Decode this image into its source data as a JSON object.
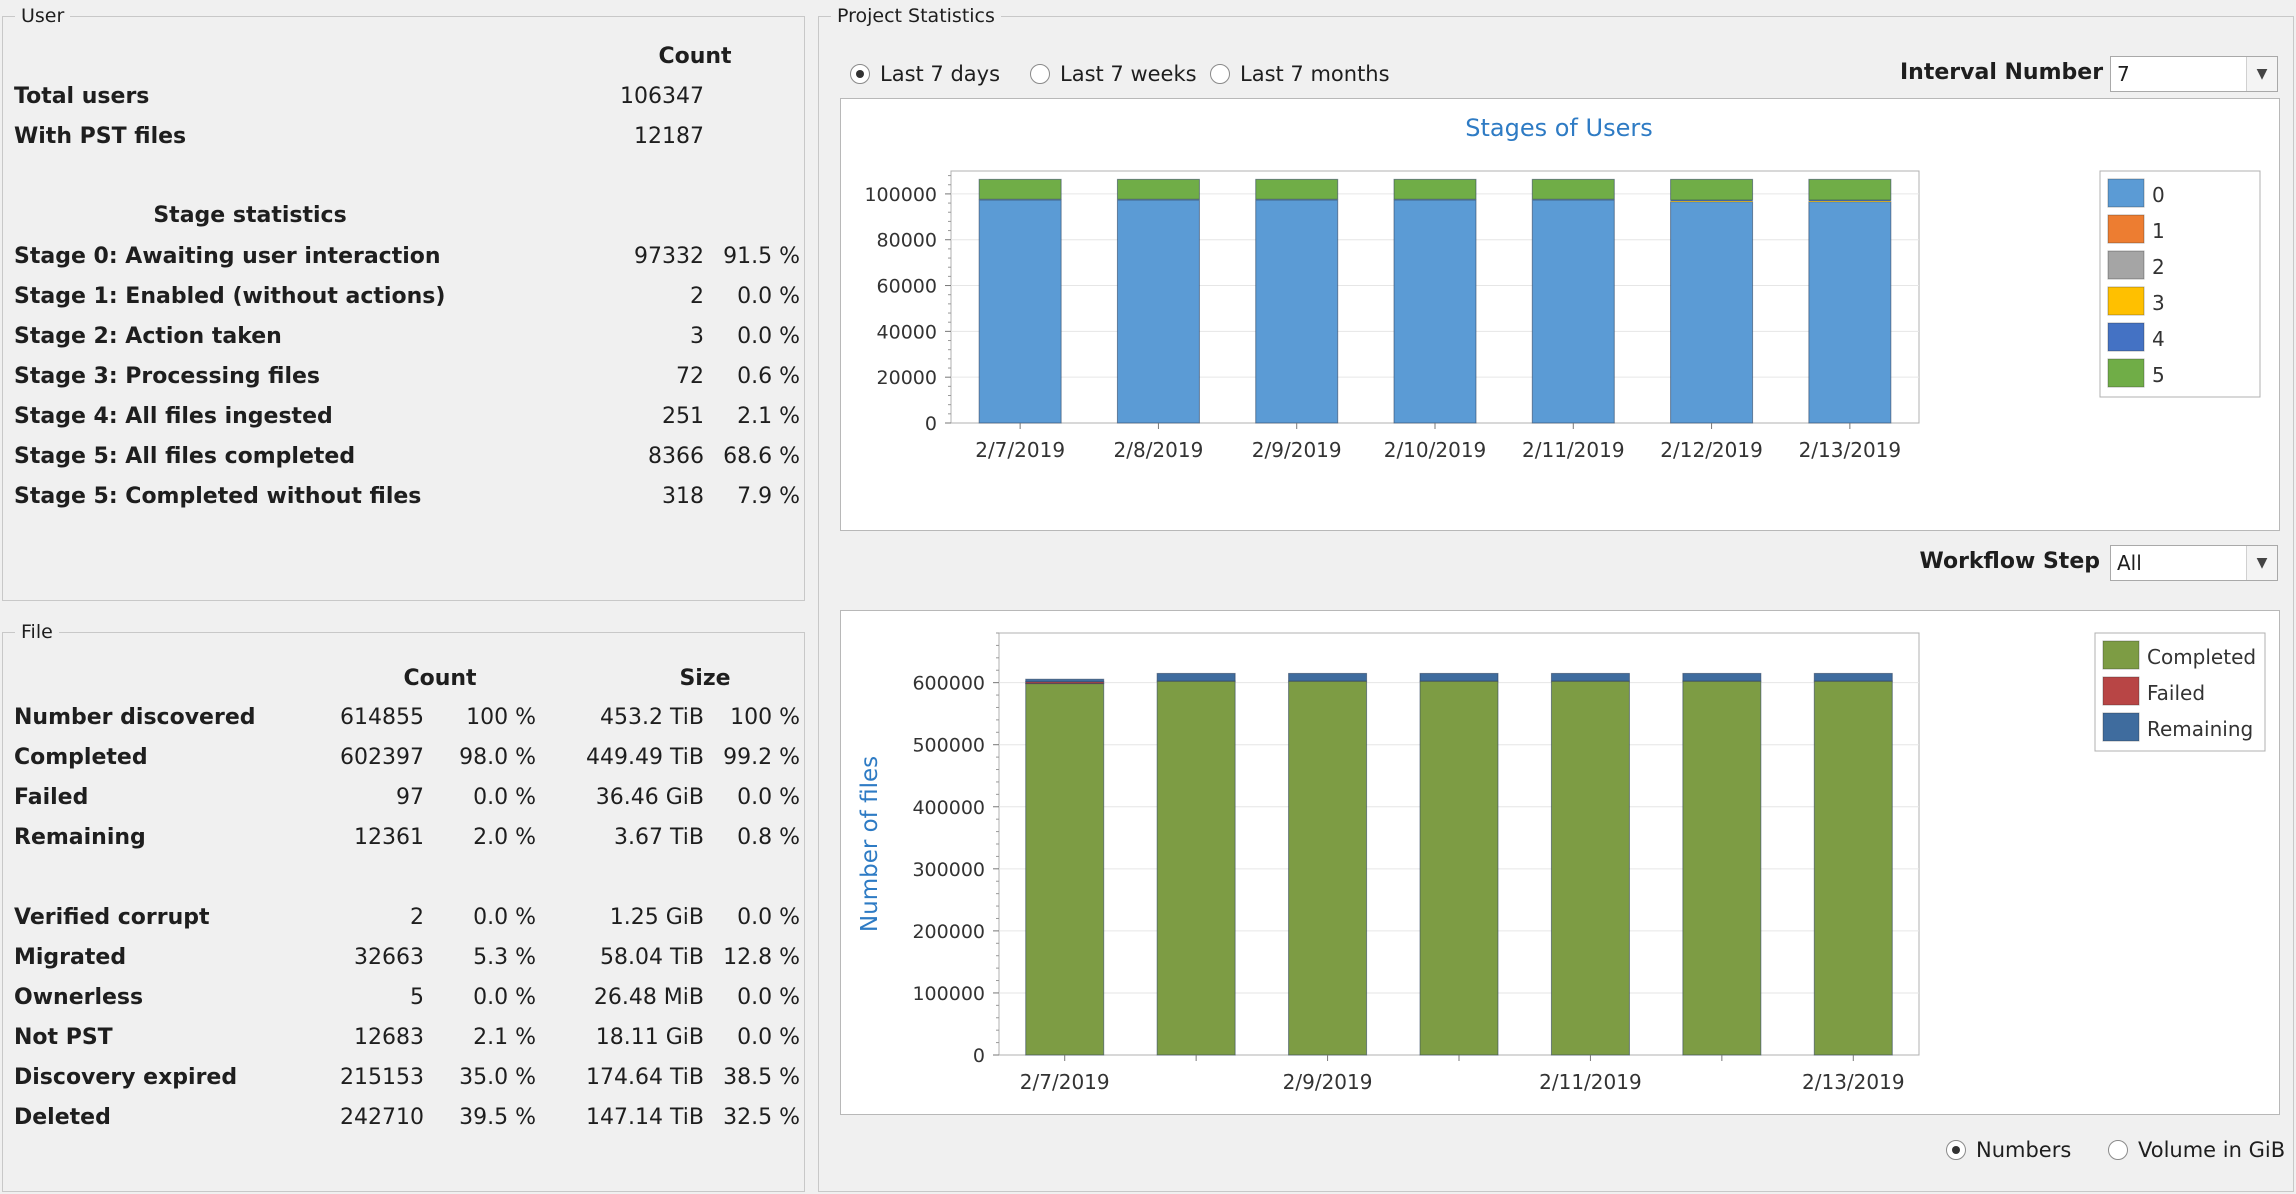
{
  "user_panel": {
    "title": "User",
    "count_header": "Count",
    "totals": [
      {
        "label": "Total users",
        "count": "106347"
      },
      {
        "label": "With PST files",
        "count": "12187"
      }
    ],
    "stage_header": "Stage statistics",
    "stages": [
      {
        "label": "Stage 0: Awaiting user interaction",
        "count": "97332",
        "pct": "91.5 %"
      },
      {
        "label": "Stage 1: Enabled (without actions)",
        "count": "2",
        "pct": "0.0 %"
      },
      {
        "label": "Stage 2: Action taken",
        "count": "3",
        "pct": "0.0 %"
      },
      {
        "label": "Stage 3: Processing files",
        "count": "72",
        "pct": "0.6 %"
      },
      {
        "label": "Stage 4: All files ingested",
        "count": "251",
        "pct": "2.1 %"
      },
      {
        "label": "Stage 5: All files completed",
        "count": "8366",
        "pct": "68.6 %"
      },
      {
        "label": "Stage 5: Completed without files",
        "count": "318",
        "pct": "7.9 %"
      }
    ]
  },
  "file_panel": {
    "title": "File",
    "count_header": "Count",
    "size_header": "Size",
    "rows": [
      {
        "label": "Number discovered",
        "count": "614855",
        "cpct": "100 %",
        "size": "453.2 TiB",
        "spct": "100 %"
      },
      {
        "label": "Completed",
        "count": "602397",
        "cpct": "98.0 %",
        "size": "449.49 TiB",
        "spct": "99.2 %"
      },
      {
        "label": "Failed",
        "count": "97",
        "cpct": "0.0 %",
        "size": "36.46 GiB",
        "spct": "0.0 %"
      },
      {
        "label": "Remaining",
        "count": "12361",
        "cpct": "2.0 %",
        "size": "3.67 TiB",
        "spct": "0.8 %"
      },
      {
        "label": "Verified corrupt",
        "count": "2",
        "cpct": "0.0 %",
        "size": "1.25 GiB",
        "spct": "0.0 %"
      },
      {
        "label": "Migrated",
        "count": "32663",
        "cpct": "5.3 %",
        "size": "58.04 TiB",
        "spct": "12.8 %"
      },
      {
        "label": "Ownerless",
        "count": "5",
        "cpct": "0.0 %",
        "size": "26.48 MiB",
        "spct": "0.0 %"
      },
      {
        "label": "Not PST",
        "count": "12683",
        "cpct": "2.1 %",
        "size": "18.11 GiB",
        "spct": "0.0 %"
      },
      {
        "label": "Discovery expired",
        "count": "215153",
        "cpct": "35.0 %",
        "size": "174.64 TiB",
        "spct": "38.5 %"
      },
      {
        "label": "Deleted",
        "count": "242710",
        "cpct": "39.5 %",
        "size": "147.14 TiB",
        "spct": "32.5 %"
      }
    ]
  },
  "project_panel": {
    "title": "Project Statistics",
    "range_options": [
      {
        "label": "Last 7 days",
        "selected": true
      },
      {
        "label": "Last 7 weeks",
        "selected": false
      },
      {
        "label": "Last 7 months",
        "selected": false
      }
    ],
    "interval_label": "Interval Number",
    "interval_value": "7",
    "workflow_label": "Workflow Step",
    "workflow_value": "All",
    "mode_options": [
      {
        "label": "Numbers",
        "selected": true
      },
      {
        "label": "Volume in GiB",
        "selected": false
      }
    ]
  },
  "chart_data": [
    {
      "type": "bar",
      "stacked": true,
      "title": "Stages of Users",
      "xlabel": "",
      "ylabel": "",
      "categories": [
        "2/7/2019",
        "2/8/2019",
        "2/9/2019",
        "2/10/2019",
        "2/11/2019",
        "2/12/2019",
        "2/13/2019"
      ],
      "ylim": [
        0,
        110000
      ],
      "yticks": [
        0,
        20000,
        40000,
        60000,
        80000,
        100000
      ],
      "legend_position": "right",
      "series": [
        {
          "name": "0",
          "color": "#5b9bd5",
          "values": [
            97332,
            97332,
            97332,
            97332,
            97332,
            96600,
            96600
          ]
        },
        {
          "name": "1",
          "color": "#ed7d31",
          "values": [
            2,
            2,
            2,
            2,
            2,
            2,
            2
          ]
        },
        {
          "name": "2",
          "color": "#a5a5a5",
          "values": [
            3,
            3,
            3,
            3,
            3,
            3,
            3
          ]
        },
        {
          "name": "3",
          "color": "#ffc000",
          "values": [
            72,
            72,
            72,
            72,
            72,
            300,
            300
          ]
        },
        {
          "name": "4",
          "color": "#4472c4",
          "values": [
            251,
            251,
            251,
            251,
            251,
            400,
            400
          ]
        },
        {
          "name": "5",
          "color": "#70ad47",
          "values": [
            8687,
            8687,
            8687,
            8687,
            8687,
            9042,
            9042
          ]
        }
      ]
    },
    {
      "type": "bar",
      "stacked": true,
      "title": "",
      "xlabel": "",
      "ylabel": "Number of files",
      "categories": [
        "2/7/2019",
        "2/8/2019",
        "2/9/2019",
        "2/10/2019",
        "2/11/2019",
        "2/12/2019",
        "2/13/2019"
      ],
      "xtick_labels_shown": [
        "2/7/2019",
        "2/9/2019",
        "2/11/2019",
        "2/13/2019"
      ],
      "ylim": [
        0,
        680000
      ],
      "yticks": [
        0,
        100000,
        200000,
        300000,
        400000,
        500000,
        600000
      ],
      "legend_position": "right",
      "series": [
        {
          "name": "Completed",
          "color": "#7d9c44",
          "values": [
            598500,
            602397,
            602397,
            602397,
            602397,
            602397,
            602397
          ]
        },
        {
          "name": "Failed",
          "color": "#b84545",
          "values": [
            3000,
            97,
            97,
            97,
            97,
            97,
            97
          ]
        },
        {
          "name": "Remaining",
          "color": "#3f6c9e",
          "values": [
            4000,
            12361,
            12361,
            12361,
            12361,
            12361,
            12361
          ]
        }
      ]
    }
  ]
}
